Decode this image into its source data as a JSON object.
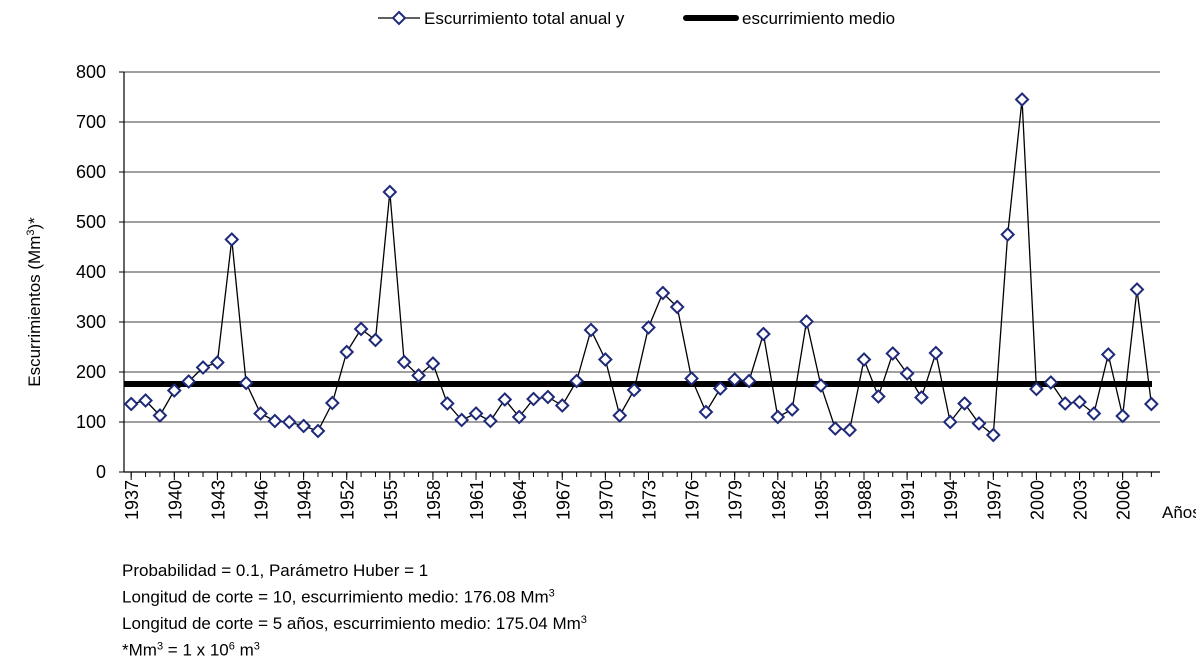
{
  "chart_data": {
    "type": "line",
    "legend": [
      "Escurrimiento total anual y",
      "escurrimiento medio"
    ],
    "ylabel": [
      "Escurrimientos (Mm",
      "3",
      ")*"
    ],
    "xlabel": "Años",
    "x": [
      1937,
      1938,
      1939,
      1940,
      1941,
      1942,
      1943,
      1944,
      1945,
      1946,
      1947,
      1948,
      1949,
      1950,
      1951,
      1952,
      1953,
      1954,
      1955,
      1956,
      1957,
      1958,
      1959,
      1960,
      1961,
      1962,
      1963,
      1964,
      1965,
      1966,
      1967,
      1968,
      1969,
      1970,
      1971,
      1972,
      1973,
      1974,
      1975,
      1976,
      1977,
      1978,
      1979,
      1980,
      1981,
      1982,
      1983,
      1984,
      1985,
      1986,
      1987,
      1988,
      1989,
      1990,
      1991,
      1992,
      1993,
      1994,
      1995,
      1996,
      1997,
      1998,
      1999,
      2000,
      2001,
      2002,
      2003,
      2004,
      2005,
      2006,
      2007,
      2008
    ],
    "series": [
      {
        "name": "Escurrimiento total anual",
        "color": "#1f2a7a",
        "line_color": "#000000",
        "values": [
          136,
          143,
          113,
          163,
          181,
          209,
          219,
          465,
          178,
          117,
          102,
          100,
          92,
          82,
          138,
          240,
          286,
          264,
          560,
          220,
          193,
          217,
          137,
          104,
          117,
          102,
          145,
          110,
          146,
          150,
          133,
          182,
          284,
          225,
          113,
          164,
          289,
          358,
          330,
          187,
          120,
          167,
          185,
          182,
          276,
          110,
          125,
          301,
          173,
          87,
          84,
          225,
          151,
          237,
          197,
          149,
          238,
          100,
          137,
          97,
          74,
          475,
          745,
          166,
          179,
          137,
          140,
          117,
          235,
          112,
          365,
          136
        ]
      }
    ],
    "mean_line": {
      "name": "escurrimiento medio",
      "value": 176.08,
      "color": "#000000"
    },
    "xlim": [
      1936.5,
      2008.6
    ],
    "xticks": [
      1937,
      1940,
      1943,
      1946,
      1949,
      1952,
      1955,
      1958,
      1961,
      1964,
      1967,
      1970,
      1973,
      1976,
      1979,
      1982,
      1985,
      1988,
      1991,
      1994,
      1997,
      2000,
      2003,
      2006
    ],
    "ylim": [
      0,
      800
    ],
    "yticks": [
      0,
      100,
      200,
      300,
      400,
      500,
      600,
      700,
      800
    ],
    "grid": true,
    "notes": [
      [
        "Probabilidad = 0.1, Parámetro Huber = 1"
      ],
      [
        "Longitud de corte = 10, escurrimiento medio: 176.08 Mm",
        "3"
      ],
      [
        "Longitud de corte = 5 años, escurrimiento medio: 175.04 Mm",
        "3"
      ],
      [
        "*Mm",
        "3",
        " = 1 x 10",
        "6",
        " m",
        "3"
      ]
    ]
  }
}
